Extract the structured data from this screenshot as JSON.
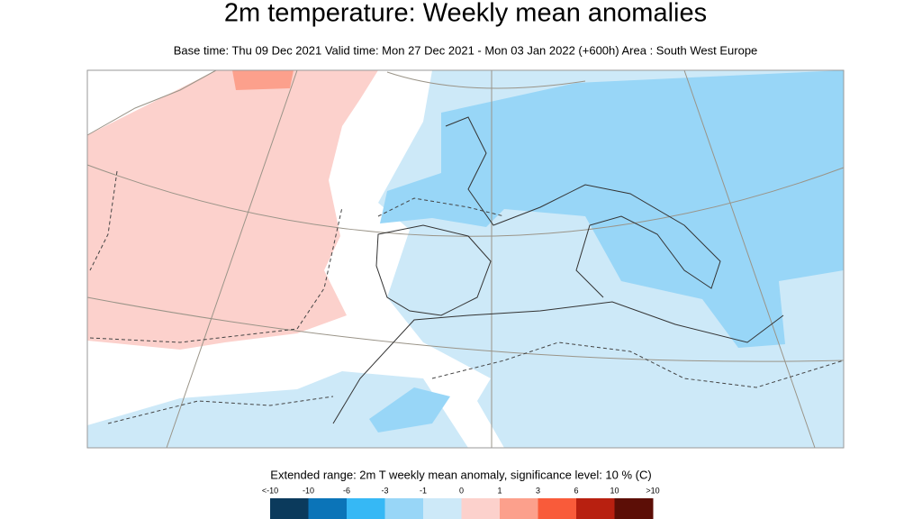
{
  "title": "2m temperature: Weekly mean anomalies",
  "subtitle": "Base time: Thu 09 Dec 2021 Valid time: Mon 27 Dec 2021 - Mon 03 Jan 2022 (+600h) Area : South West Europe",
  "legend": {
    "title": "Extended range: 2m T weekly mean anomaly, significance level: 10 % (C)",
    "labels": [
      "<-10",
      "-10",
      "-6",
      "-3",
      "-1",
      "0",
      "1",
      "3",
      "6",
      "10",
      ">10"
    ],
    "colors": [
      "#0b3a5c",
      "#0b74b8",
      "#36b8f5",
      "#98d6f7",
      "#cde9f8",
      "#fcd1cc",
      "#fca08c",
      "#f95b3a",
      "#b82010",
      "#5c0e06"
    ]
  }
}
